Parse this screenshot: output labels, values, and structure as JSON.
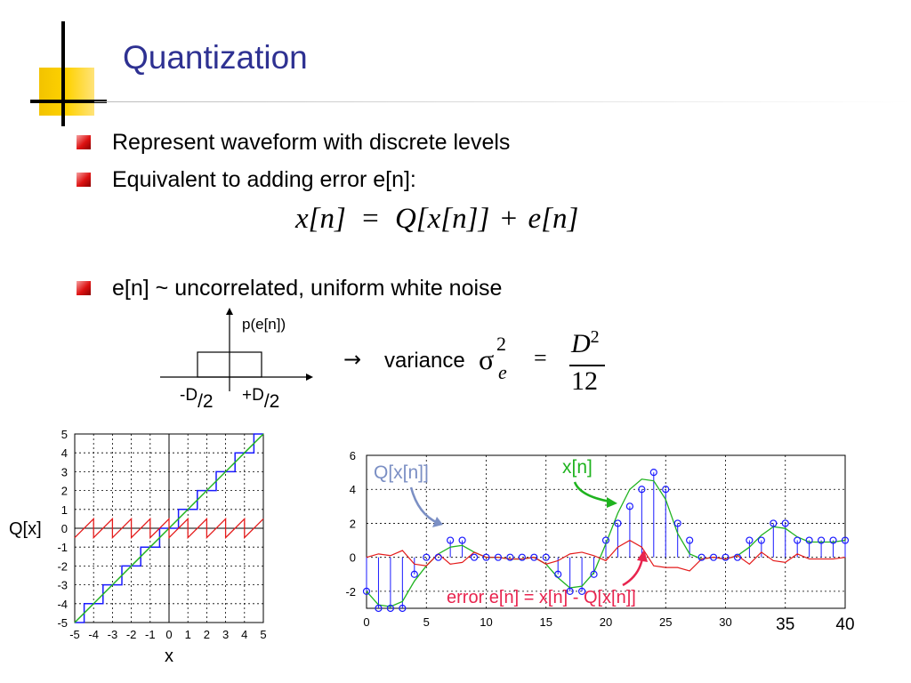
{
  "slide": {
    "title": "Quantization",
    "bullets": [
      "Represent waveform with discrete levels",
      "Equivalent to adding error e[n]:",
      "e[n] ~ uncorrelated, uniform white noise"
    ],
    "equation": {
      "lhs": "x[n]",
      "eq": "=",
      "rhs_q": "Q[x[n]]",
      "plus": "+",
      "rhs_e": "e[n]"
    },
    "pdf": {
      "ylabel": "p(e[n])",
      "left_label": "-D",
      "left_sub": "/2",
      "right_label": "+D",
      "right_sub": "/2"
    },
    "variance": {
      "arrow": "→",
      "label": "variance",
      "sigma": "σ",
      "sup": "2",
      "sub": "e",
      "eq": "=",
      "num": "D",
      "num_sup": "2",
      "den": "12"
    },
    "colors": {
      "title": "#2e3192",
      "bullet": "#d11111",
      "staircase": "#1a1aff",
      "ramp": "#1fb31f",
      "error": "#e41b1b",
      "signal_label": "#1fb31f",
      "q_label": "#7b8fc4",
      "err_label": "#e8244e"
    }
  },
  "chart_data": [
    {
      "type": "line",
      "title": "",
      "xlabel": "x",
      "ylabel": "Q[x]",
      "xlim": [
        -5,
        5
      ],
      "ylim": [
        -5,
        5
      ],
      "x_ticks": [
        "-5",
        "-4",
        "-3",
        "-2",
        "-1",
        "0",
        "1",
        "2",
        "3",
        "4",
        "5"
      ],
      "y_ticks": [
        "5",
        "4",
        "3",
        "2",
        "1",
        "0",
        "-1",
        "-2",
        "-3",
        "-4",
        "-5"
      ],
      "grid": true,
      "series": [
        {
          "name": "",
          "kind": "ramp",
          "x": [
            -5,
            5
          ],
          "y": [
            -5,
            5
          ]
        },
        {
          "name": "",
          "kind": "staircase_round",
          "x_range": [
            -5,
            5
          ]
        },
        {
          "name": "",
          "kind": "sawtooth_error",
          "x_range": [
            -5,
            5
          ],
          "amplitude": 0.5
        }
      ]
    },
    {
      "type": "line",
      "title": "",
      "xlabel": "",
      "ylabel": "",
      "xlim": [
        0,
        40
      ],
      "ylim": [
        -3,
        6
      ],
      "x_ticks": [
        "0",
        "5",
        "10",
        "15",
        "20",
        "25",
        "30",
        "35",
        "40"
      ],
      "y_ticks": [
        "6",
        "4",
        "2",
        "0",
        "-2"
      ],
      "grid": true,
      "annotations": {
        "q_label": "Q[x[n]]",
        "x_label": "x[n]",
        "err_label": "error e[n] = x[n] - Q[x[n]]"
      },
      "series": [
        {
          "name": "x[n]",
          "n": [
            0,
            1,
            2,
            3,
            4,
            5,
            6,
            7,
            8,
            9,
            10,
            11,
            12,
            13,
            14,
            15,
            16,
            17,
            18,
            19,
            20,
            21,
            22,
            23,
            24,
            25,
            26,
            27,
            28,
            29,
            30,
            31,
            32,
            33,
            34,
            35,
            36,
            37,
            38,
            39,
            40
          ],
          "values": [
            -2.0,
            -2.8,
            -2.9,
            -2.6,
            -1.4,
            -0.5,
            0.2,
            0.6,
            0.7,
            0.3,
            0.0,
            0.0,
            -0.1,
            -0.1,
            0.0,
            -0.4,
            -1.2,
            -1.8,
            -1.7,
            -0.9,
            0.8,
            2.6,
            4.0,
            4.6,
            4.5,
            3.4,
            1.4,
            0.2,
            -0.1,
            0.0,
            -0.1,
            0.1,
            0.6,
            1.3,
            1.8,
            1.7,
            1.2,
            0.9,
            0.9,
            0.9,
            1.0
          ]
        },
        {
          "name": "Q[x[n]]",
          "n": [
            0,
            1,
            2,
            3,
            4,
            5,
            6,
            7,
            8,
            9,
            10,
            11,
            12,
            13,
            14,
            15,
            16,
            17,
            18,
            19,
            20,
            21,
            22,
            23,
            24,
            25,
            26,
            27,
            28,
            29,
            30,
            31,
            32,
            33,
            34,
            35,
            36,
            37,
            38,
            39,
            40
          ],
          "values": [
            -2,
            -3,
            -3,
            -3,
            -1,
            0,
            0,
            1,
            1,
            0,
            0,
            0,
            0,
            0,
            0,
            0,
            -1,
            -2,
            -2,
            -1,
            1,
            2,
            3,
            4,
            5,
            4,
            2,
            1,
            0,
            0,
            0,
            0,
            1,
            1,
            2,
            2,
            1,
            1,
            1,
            1,
            1
          ]
        },
        {
          "name": "error e[n] = x[n] - Q[x[n]]",
          "n": [
            0,
            1,
            2,
            3,
            4,
            5,
            6,
            7,
            8,
            9,
            10,
            11,
            12,
            13,
            14,
            15,
            16,
            17,
            18,
            19,
            20,
            21,
            22,
            23,
            24,
            25,
            26,
            27,
            28,
            29,
            30,
            31,
            32,
            33,
            34,
            35,
            36,
            37,
            38,
            39,
            40
          ],
          "values": [
            0.0,
            0.2,
            0.1,
            0.4,
            -0.4,
            -0.5,
            0.2,
            -0.4,
            -0.3,
            0.3,
            0.0,
            0.0,
            -0.1,
            -0.1,
            0.0,
            -0.4,
            -0.2,
            0.2,
            0.3,
            0.1,
            -0.2,
            0.6,
            1.0,
            0.6,
            -0.5,
            -0.6,
            -0.6,
            -0.8,
            -0.1,
            0.0,
            -0.1,
            0.1,
            -0.4,
            0.3,
            -0.2,
            -0.3,
            0.2,
            -0.1,
            -0.1,
            -0.1,
            0.0
          ]
        }
      ]
    }
  ]
}
